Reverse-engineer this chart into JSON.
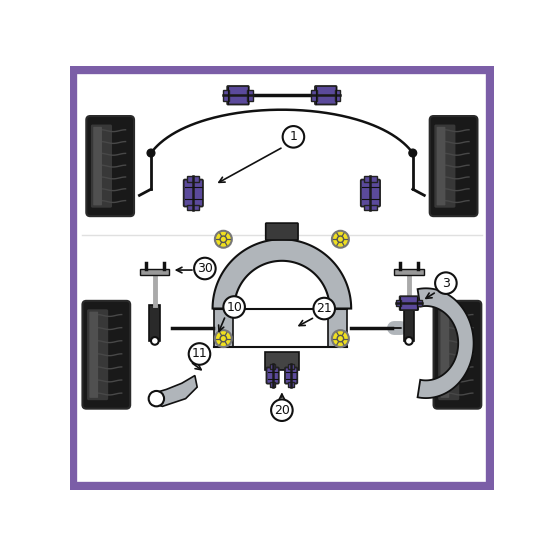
{
  "bg_color": "#ffffff",
  "border_color": "#7B5EA7",
  "purple": "#5B4A9B",
  "yellow": "#F0E020",
  "gray_part": "#b0b5ba",
  "gray_part2": "#c8cdd2",
  "dark_gray": "#444444",
  "black": "#111111",
  "line_color": "#111111",
  "white": "#ffffff",
  "shock_dark": "#333333",
  "shock_light": "#aaaaaa"
}
